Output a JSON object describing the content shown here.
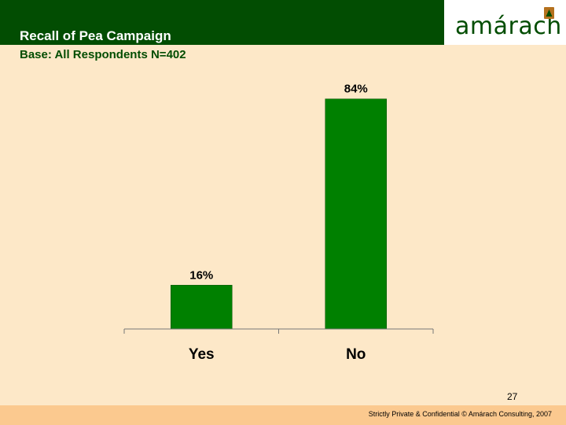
{
  "header": {
    "title": "Recall of Pea Campaign",
    "subtitle": "Base: All Respondents N=402",
    "logo_text": "amárach",
    "bar_color": "#024d02",
    "logo_icon": "amarach-logo-icon"
  },
  "chart_data": {
    "type": "bar",
    "categories": [
      "Yes",
      "No"
    ],
    "values": [
      16,
      84
    ],
    "value_labels": [
      "16%",
      "84%"
    ],
    "ylim": [
      0,
      100
    ],
    "bar_color": "#008000",
    "grid": false,
    "legend": "none"
  },
  "footer": {
    "page_number": "27",
    "text": "Strictly Private & Confidential © Amárach Consulting, 2007"
  }
}
